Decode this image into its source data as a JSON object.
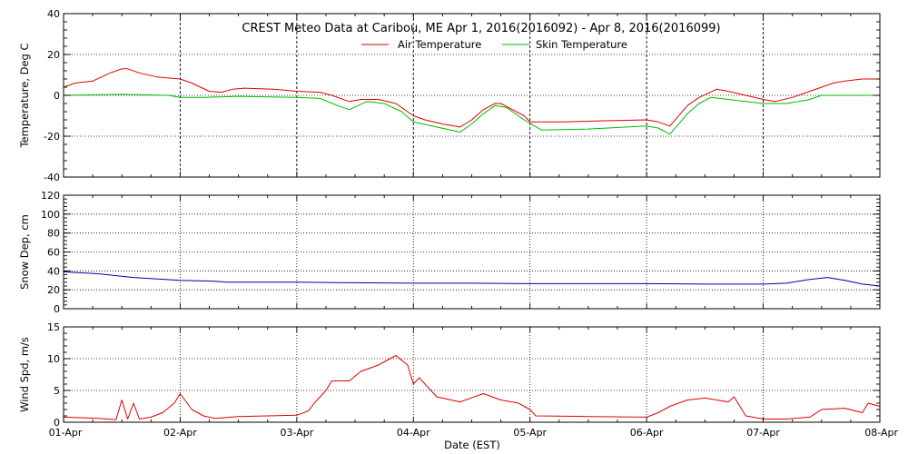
{
  "chart_data": {
    "type": "line",
    "title": "CREST Meteo Data at Caribou, ME   Apr  1, 2016(2016092) - Apr  8, 2016(2016099)",
    "xlabel": "Date (EST)",
    "x_ticks": [
      "01-Apr",
      "02-Apr",
      "03-Apr",
      "04-Apr",
      "05-Apr",
      "06-Apr",
      "07-Apr",
      "08-Apr"
    ],
    "xlim": [
      0,
      7
    ],
    "legend_position": "top-center",
    "grid": true,
    "panels": [
      {
        "id": "temperature",
        "ylabel": "Temperature, Deg C",
        "ylim": [
          -40,
          40
        ],
        "yticks": [
          -40,
          -20,
          0,
          20,
          40
        ],
        "series": [
          {
            "name": "Air Temperature",
            "color": "#dd0000",
            "points": [
              [
                0,
                4
              ],
              [
                0.1,
                6
              ],
              [
                0.25,
                7
              ],
              [
                0.4,
                11
              ],
              [
                0.5,
                13
              ],
              [
                0.55,
                13
              ],
              [
                0.65,
                11
              ],
              [
                0.8,
                9
              ],
              [
                1.0,
                8
              ],
              [
                1.1,
                6
              ],
              [
                1.25,
                2
              ],
              [
                1.35,
                1.5
              ],
              [
                1.45,
                3
              ],
              [
                1.55,
                3.5
              ],
              [
                1.8,
                3
              ],
              [
                2.0,
                2
              ],
              [
                2.2,
                1.5
              ],
              [
                2.3,
                0
              ],
              [
                2.45,
                -3
              ],
              [
                2.55,
                -2
              ],
              [
                2.7,
                -2
              ],
              [
                2.85,
                -4
              ],
              [
                3.0,
                -10
              ],
              [
                3.1,
                -12
              ],
              [
                3.25,
                -14
              ],
              [
                3.4,
                -15.5
              ],
              [
                3.5,
                -12
              ],
              [
                3.6,
                -7
              ],
              [
                3.7,
                -4
              ],
              [
                3.75,
                -4
              ],
              [
                3.85,
                -7
              ],
              [
                3.95,
                -10
              ],
              [
                4.0,
                -13
              ],
              [
                4.3,
                -13
              ],
              [
                4.6,
                -12.5
              ],
              [
                5.0,
                -12
              ],
              [
                5.1,
                -13
              ],
              [
                5.2,
                -15
              ],
              [
                5.35,
                -5
              ],
              [
                5.45,
                -1
              ],
              [
                5.6,
                3
              ],
              [
                5.7,
                2
              ],
              [
                5.85,
                0
              ],
              [
                6.0,
                -2
              ],
              [
                6.1,
                -3
              ],
              [
                6.25,
                -1
              ],
              [
                6.4,
                2
              ],
              [
                6.5,
                4
              ],
              [
                6.6,
                6
              ],
              [
                6.7,
                7
              ],
              [
                6.85,
                8
              ],
              [
                7.0,
                8
              ]
            ]
          },
          {
            "name": "Skin Temperature",
            "color": "#00bb00",
            "points": [
              [
                0,
                0
              ],
              [
                0.5,
                0.5
              ],
              [
                0.9,
                0
              ],
              [
                1.0,
                -1
              ],
              [
                1.2,
                -1
              ],
              [
                1.5,
                -0.5
              ],
              [
                2.0,
                -1
              ],
              [
                2.2,
                -1.5
              ],
              [
                2.35,
                -5
              ],
              [
                2.45,
                -7
              ],
              [
                2.6,
                -3
              ],
              [
                2.75,
                -4
              ],
              [
                2.9,
                -8
              ],
              [
                3.0,
                -13
              ],
              [
                3.2,
                -15.5
              ],
              [
                3.4,
                -18
              ],
              [
                3.5,
                -14
              ],
              [
                3.6,
                -9
              ],
              [
                3.7,
                -5
              ],
              [
                3.8,
                -6
              ],
              [
                3.95,
                -12
              ],
              [
                4.1,
                -17
              ],
              [
                4.5,
                -16.5
              ],
              [
                5.0,
                -15
              ],
              [
                5.1,
                -16
              ],
              [
                5.2,
                -19
              ],
              [
                5.35,
                -9
              ],
              [
                5.45,
                -4
              ],
              [
                5.55,
                -1
              ],
              [
                5.7,
                -2
              ],
              [
                5.85,
                -3
              ],
              [
                6.0,
                -4
              ],
              [
                6.2,
                -4
              ],
              [
                6.4,
                -2
              ],
              [
                6.5,
                0
              ],
              [
                7.0,
                0
              ]
            ]
          }
        ]
      },
      {
        "id": "snow",
        "ylabel": "Snow Dep, cm",
        "ylim": [
          0,
          120
        ],
        "yticks": [
          0,
          20,
          40,
          60,
          80,
          100,
          120
        ],
        "series": [
          {
            "color": "#000099",
            "points": [
              [
                0,
                39
              ],
              [
                0.3,
                37
              ],
              [
                0.6,
                33
              ],
              [
                1.0,
                30
              ],
              [
                1.3,
                29
              ],
              [
                1.4,
                28
              ],
              [
                2.0,
                28
              ],
              [
                2.5,
                27.5
              ],
              [
                3.0,
                27
              ],
              [
                3.5,
                27
              ],
              [
                4.0,
                26.5
              ],
              [
                4.5,
                26.5
              ],
              [
                5.0,
                26.5
              ],
              [
                5.5,
                26
              ],
              [
                6.0,
                26
              ],
              [
                6.2,
                27
              ],
              [
                6.4,
                31
              ],
              [
                6.55,
                33
              ],
              [
                6.7,
                30
              ],
              [
                6.85,
                26
              ],
              [
                7.0,
                24
              ]
            ]
          }
        ]
      },
      {
        "id": "wind",
        "ylabel": "Wind Spd, m/s",
        "ylim": [
          0,
          15
        ],
        "yticks": [
          0,
          5,
          10,
          15
        ],
        "series": [
          {
            "color": "#dd0000",
            "points": [
              [
                0,
                0.8
              ],
              [
                0.3,
                0.6
              ],
              [
                0.45,
                0.4
              ],
              [
                0.5,
                3.5
              ],
              [
                0.55,
                0.5
              ],
              [
                0.6,
                3
              ],
              [
                0.65,
                0.5
              ],
              [
                0.75,
                0.8
              ],
              [
                0.85,
                1.5
              ],
              [
                0.95,
                3
              ],
              [
                1.0,
                4.5
              ],
              [
                1.1,
                2
              ],
              [
                1.2,
                1
              ],
              [
                1.3,
                0.6
              ],
              [
                1.5,
                0.9
              ],
              [
                2.0,
                1.1
              ],
              [
                2.1,
                1.8
              ],
              [
                2.15,
                3
              ],
              [
                2.25,
                5
              ],
              [
                2.3,
                6.5
              ],
              [
                2.45,
                6.5
              ],
              [
                2.55,
                8
              ],
              [
                2.7,
                9
              ],
              [
                2.85,
                10.5
              ],
              [
                2.95,
                9
              ],
              [
                3.0,
                6
              ],
              [
                3.05,
                7
              ],
              [
                3.15,
                5
              ],
              [
                3.2,
                4
              ],
              [
                3.4,
                3.2
              ],
              [
                3.6,
                4.5
              ],
              [
                3.75,
                3.5
              ],
              [
                3.9,
                3
              ],
              [
                4.0,
                2
              ],
              [
                4.05,
                1
              ],
              [
                4.5,
                0.9
              ],
              [
                5.0,
                0.8
              ],
              [
                5.1,
                1.5
              ],
              [
                5.2,
                2.5
              ],
              [
                5.35,
                3.5
              ],
              [
                5.5,
                3.8
              ],
              [
                5.7,
                3.2
              ],
              [
                5.75,
                4
              ],
              [
                5.85,
                1
              ],
              [
                6.0,
                0.5
              ],
              [
                6.2,
                0.5
              ],
              [
                6.4,
                0.8
              ],
              [
                6.5,
                2
              ],
              [
                6.7,
                2.2
              ],
              [
                6.85,
                1.5
              ],
              [
                6.9,
                3
              ],
              [
                7.0,
                2.5
              ]
            ]
          }
        ]
      }
    ]
  }
}
